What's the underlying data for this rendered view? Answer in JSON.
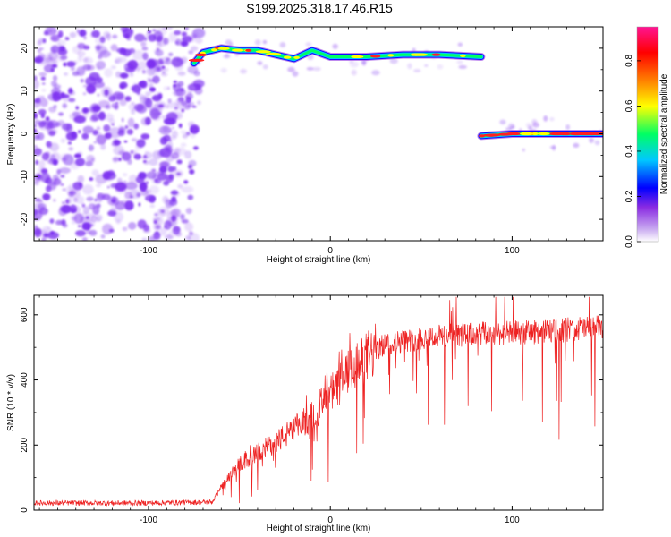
{
  "title": "S199.2025.318.17.46.R15",
  "colors": {
    "snr_line": "#ee2222",
    "speckle": "#7b2ff0",
    "colormap": [
      "#c8a8f0",
      "#8a2be2",
      "#0000ff",
      "#00c8ff",
      "#00ff64",
      "#ffff00",
      "#ff8000",
      "#ff0000",
      "#ff1493"
    ]
  },
  "chart_data": [
    {
      "type": "heatmap",
      "name": "spectrogram",
      "xlabel": "Height of straight line (km)",
      "ylabel": "Frequency (Hz)",
      "xlim": [
        -163,
        150
      ],
      "ylim": [
        -25,
        25
      ],
      "x_ticks": [
        -100,
        0,
        100
      ],
      "x_tick_labels": [
        "-100",
        "0",
        "100"
      ],
      "y_ticks": [
        -20,
        -10,
        0,
        10,
        20
      ],
      "y_tick_labels": [
        "-20",
        "-10",
        "0",
        "10",
        "20"
      ],
      "colorbar": {
        "label": "Normalized spectral amplitude",
        "range": [
          0,
          0.95
        ],
        "ticks": [
          0.0,
          0.2,
          0.4,
          0.6,
          0.8
        ],
        "tick_labels": [
          "0.0",
          "0.2",
          "0.4",
          "0.6",
          "0.8"
        ]
      },
      "noise_region": {
        "x_range": [
          -163,
          -72
        ],
        "y_range": [
          -25,
          25
        ]
      },
      "tone_tracks": [
        {
          "name": "upper-track",
          "points": [
            [
              -75,
              16.5
            ],
            [
              -70,
              19
            ],
            [
              -60,
              20
            ],
            [
              -50,
              19.5
            ],
            [
              -40,
              19.5
            ],
            [
              -30,
              18.5
            ],
            [
              -20,
              17.5
            ],
            [
              -10,
              19.5
            ],
            [
              0,
              18
            ],
            [
              20,
              18
            ],
            [
              40,
              18.5
            ],
            [
              60,
              18.5
            ],
            [
              83,
              18
            ]
          ]
        },
        {
          "name": "lower-track",
          "points": [
            [
              83,
              -0.5
            ],
            [
              100,
              0
            ],
            [
              120,
              0
            ],
            [
              150,
              0
            ]
          ]
        }
      ]
    },
    {
      "type": "line",
      "name": "snr",
      "xlabel": "Height of straight line (km)",
      "ylabel": "SNR (10 * v/v)",
      "xlim": [
        -163,
        150
      ],
      "ylim": [
        0,
        660
      ],
      "x_ticks": [
        -100,
        0,
        100
      ],
      "x_tick_labels": [
        "-100",
        "0",
        "100"
      ],
      "y_ticks": [
        0,
        200,
        400,
        600
      ],
      "y_tick_labels": [
        "0",
        "200",
        "400",
        "600"
      ],
      "envelope": {
        "x": [
          -163,
          -100,
          -65,
          -60,
          -50,
          -40,
          -30,
          -20,
          -10,
          0,
          10,
          20,
          30,
          40,
          60,
          80,
          100,
          120,
          140,
          150
        ],
        "mean": [
          22,
          22,
          25,
          70,
          140,
          175,
          210,
          245,
          290,
          355,
          420,
          470,
          510,
          520,
          535,
          540,
          545,
          550,
          560,
          560
        ]
      }
    }
  ]
}
